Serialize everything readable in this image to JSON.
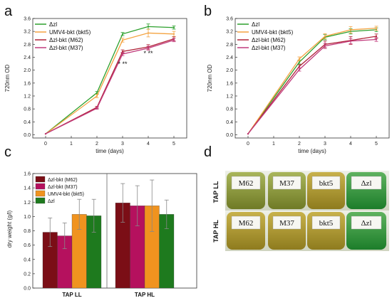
{
  "panels": {
    "a": "a",
    "b": "b",
    "c": "c",
    "d": "d"
  },
  "colors": {
    "dzl": "#2ca02c",
    "bkt5": "#f4a340",
    "m62": "#b02338",
    "m37": "#c13a7c",
    "bar_m62": "#7b0e16",
    "bar_m37": "#b5115e",
    "bar_bkt5": "#f0931f",
    "bar_dzl": "#1e7a1e"
  },
  "chart_data": [
    {
      "id": "a",
      "type": "line",
      "xlabel": "time (days)",
      "ylabel": "720nm OD",
      "x": [
        0,
        2,
        3,
        4,
        5
      ],
      "xlim": [
        -0.5,
        5.5
      ],
      "ylim": [
        -0.1,
        3.6
      ],
      "xticks": [
        0,
        1,
        2,
        3,
        4,
        5
      ],
      "yticks": [
        "0.0",
        "0.4",
        "0.8",
        "1.2",
        "1.6",
        "2.0",
        "2.4",
        "2.8",
        "3.2",
        "3.6"
      ],
      "legend_position": "top-left",
      "series": [
        {
          "name": "Δzl",
          "color_key": "dzl",
          "values": [
            0.03,
            1.3,
            3.12,
            3.35,
            3.32
          ],
          "err": [
            0,
            0.04,
            0.05,
            0.08,
            0.05
          ]
        },
        {
          "name": "UMV4-bkt (bkt5)",
          "color_key": "bkt5",
          "values": [
            0.03,
            1.2,
            2.93,
            3.15,
            3.12
          ],
          "err": [
            0,
            0.05,
            0.06,
            0.12,
            0.08
          ]
        },
        {
          "name": "Δzl-bkt (M62)",
          "color_key": "m62",
          "values": [
            0.03,
            0.85,
            2.58,
            2.72,
            2.97
          ],
          "err": [
            0,
            0.03,
            0.05,
            0.07,
            0.06
          ]
        },
        {
          "name": "Δzl-bkt (M37)",
          "color_key": "m37",
          "values": [
            0.03,
            0.82,
            2.5,
            2.68,
            2.93
          ],
          "err": [
            0,
            0.03,
            0.05,
            0.06,
            0.05
          ]
        }
      ],
      "annotations": [
        {
          "x": 3,
          "y": 2.12,
          "text": "* **"
        },
        {
          "x": 4,
          "y": 2.45,
          "text": "* **"
        }
      ]
    },
    {
      "id": "b",
      "type": "line",
      "xlabel": "time (days)",
      "ylabel": "720nm OD",
      "x": [
        0,
        2,
        3,
        4,
        5
      ],
      "xlim": [
        -0.5,
        5.5
      ],
      "ylim": [
        -0.1,
        3.6
      ],
      "xticks": [
        0,
        1,
        2,
        3,
        4,
        5
      ],
      "yticks": [
        "0.0",
        "0.4",
        "0.8",
        "1.2",
        "1.6",
        "2.0",
        "2.4",
        "2.8",
        "3.2",
        "3.6"
      ],
      "legend_position": "top-left",
      "series": [
        {
          "name": "Δzl",
          "color_key": "dzl",
          "values": [
            0.03,
            2.25,
            3.02,
            3.2,
            3.25
          ],
          "err": [
            0,
            0.06,
            0.08,
            0.08,
            0.06
          ]
        },
        {
          "name": "UMV4-bkt (bkt5)",
          "color_key": "bkt5",
          "values": [
            0.03,
            2.35,
            3.05,
            3.25,
            3.3
          ],
          "err": [
            0,
            0.06,
            0.08,
            0.1,
            0.06
          ]
        },
        {
          "name": "Δzl-bkt (M62)",
          "color_key": "m62",
          "values": [
            0.03,
            2.12,
            2.8,
            2.92,
            3.05
          ],
          "err": [
            0,
            0.05,
            0.1,
            0.12,
            0.07
          ]
        },
        {
          "name": "Δzl-bkt (M37)",
          "color_key": "m37",
          "values": [
            0.03,
            2.02,
            2.75,
            2.9,
            2.95
          ],
          "err": [
            0,
            0.05,
            0.08,
            0.08,
            0.06
          ]
        }
      ]
    },
    {
      "id": "c",
      "type": "bar",
      "ylabel": "dry weight (g/l)",
      "categories": [
        "TAP LL",
        "TAP HL"
      ],
      "ylim": [
        0,
        1.6
      ],
      "yticks": [
        "0.0",
        "0.2",
        "0.4",
        "0.6",
        "0.8",
        "1.0",
        "1.2",
        "1.4",
        "1.6"
      ],
      "legend_position": "top-left",
      "series": [
        {
          "name": "Δzl-bkt (M62)",
          "color_key": "bar_m62",
          "values": [
            0.78,
            1.19
          ],
          "err": [
            0.2,
            0.27
          ]
        },
        {
          "name": "Δzl-bkt (M37)",
          "color_key": "bar_m37",
          "values": [
            0.73,
            1.15
          ],
          "err": [
            0.18,
            0.28
          ]
        },
        {
          "name": "UMV4-bkt (bkt5)",
          "color_key": "bar_bkt5",
          "values": [
            1.03,
            1.15
          ],
          "err": [
            0.21,
            0.36
          ]
        },
        {
          "name": "Δzl",
          "color_key": "bar_dzl",
          "values": [
            1.01,
            1.03
          ],
          "err": [
            0.23,
            0.2
          ]
        }
      ]
    }
  ],
  "photos": {
    "rows": [
      "TAP LL",
      "TAP HL"
    ],
    "labels": [
      "M62",
      "M37",
      "bkt5",
      "Δzl"
    ]
  }
}
